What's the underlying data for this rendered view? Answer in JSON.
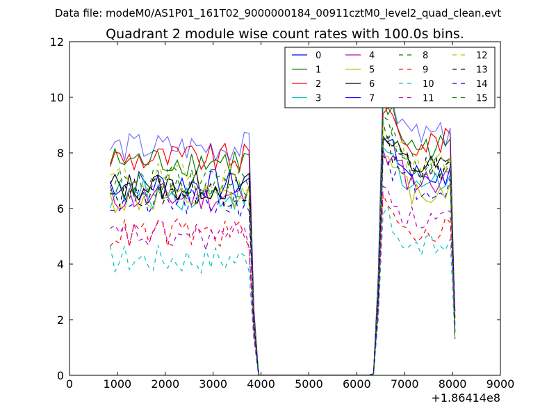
{
  "suptitle": "Data file: modeM0/AS1P01_161T02_9000000184_00911cztM0_level2_quad_clean.evt",
  "chart_data": {
    "type": "line",
    "title": "Quadrant 2 module wise count rates with 100.0s bins.",
    "xlabel": "",
    "ylabel": "",
    "x_offset_label": "+1.86414e8",
    "xlim": [
      0,
      9000
    ],
    "ylim": [
      0,
      12
    ],
    "x_ticks": [
      0,
      1000,
      2000,
      3000,
      4000,
      5000,
      6000,
      7000,
      8000,
      9000
    ],
    "y_ticks": [
      0,
      2,
      4,
      6,
      8,
      10,
      12
    ],
    "legend_position": "top-right",
    "x": [
      850,
      950,
      1050,
      1150,
      1250,
      1350,
      1450,
      1550,
      1650,
      1750,
      1850,
      1950,
      2050,
      2150,
      2250,
      2350,
      2450,
      2550,
      2650,
      2750,
      2850,
      2950,
      3050,
      3150,
      3250,
      3350,
      3450,
      3550,
      3650,
      3750,
      3850,
      3950,
      4050,
      4150,
      4250,
      4350,
      4450,
      4550,
      4650,
      4750,
      4850,
      4950,
      5050,
      5150,
      5250,
      5350,
      5450,
      5550,
      5650,
      5750,
      5850,
      5950,
      6050,
      6150,
      6250,
      6350,
      6450,
      6550,
      6650,
      6750,
      6850,
      6950,
      7050,
      7150,
      7250,
      7350,
      7450,
      7550,
      7650,
      7750,
      7850,
      7950,
      8050
    ],
    "series": [
      {
        "name": "0",
        "color": "#0000ff",
        "dash": "solid",
        "plateau1": 6.9,
        "plateau2": 7.2,
        "peak": 8.5
      },
      {
        "name": "1",
        "color": "#008000",
        "dash": "solid",
        "plateau1": 7.7,
        "plateau2": 8.2,
        "peak": 9.9
      },
      {
        "name": "2",
        "color": "#ff0000",
        "dash": "solid",
        "plateau1": 7.8,
        "plateau2": 8.4,
        "peak": 9.4
      },
      {
        "name": "3",
        "color": "#00bfbf",
        "dash": "solid",
        "plateau1": 6.5,
        "plateau2": 6.9,
        "peak": 8.2
      },
      {
        "name": "4",
        "color": "#bf00bf",
        "dash": "solid",
        "plateau1": 6.4,
        "plateau2": 7.0,
        "peak": 8.1
      },
      {
        "name": "5",
        "color": "#bfbf00",
        "dash": "solid",
        "plateau1": 6.3,
        "plateau2": 6.6,
        "peak": 7.8
      },
      {
        "name": "6",
        "color": "#000000",
        "dash": "solid",
        "plateau1": 6.8,
        "plateau2": 7.5,
        "peak": 8.6
      },
      {
        "name": "7",
        "color": "#0000ff",
        "dash": "solid",
        "plateau1": 8.2,
        "plateau2": 8.6,
        "peak": 10.6
      },
      {
        "name": "8",
        "color": "#008000",
        "dash": "dashed",
        "plateau1": 6.9,
        "plateau2": 7.5,
        "peak": 9.3
      },
      {
        "name": "9",
        "color": "#ff0000",
        "dash": "dashed",
        "plateau1": 5.1,
        "plateau2": 5.2,
        "peak": 6.5
      },
      {
        "name": "10",
        "color": "#00bfbf",
        "dash": "dashed",
        "plateau1": 4.2,
        "plateau2": 4.6,
        "peak": 5.8
      },
      {
        "name": "11",
        "color": "#bf00bf",
        "dash": "dashed",
        "plateau1": 5.0,
        "plateau2": 5.6,
        "peak": 6.8
      },
      {
        "name": "12",
        "color": "#bfbf00",
        "dash": "dashed",
        "plateau1": 7.1,
        "plateau2": 7.6,
        "peak": 9.0
      },
      {
        "name": "13",
        "color": "#000000",
        "dash": "dashed",
        "plateau1": 6.6,
        "plateau2": 7.4,
        "peak": 8.4
      },
      {
        "name": "14",
        "color": "#0000ff",
        "dash": "dashed",
        "plateau1": 6.2,
        "plateau2": 6.8,
        "peak": 7.9
      },
      {
        "name": "15",
        "color": "#008000",
        "dash": "dashed",
        "plateau1": 7.0,
        "plateau2": 7.3,
        "peak": 9.1
      }
    ]
  }
}
